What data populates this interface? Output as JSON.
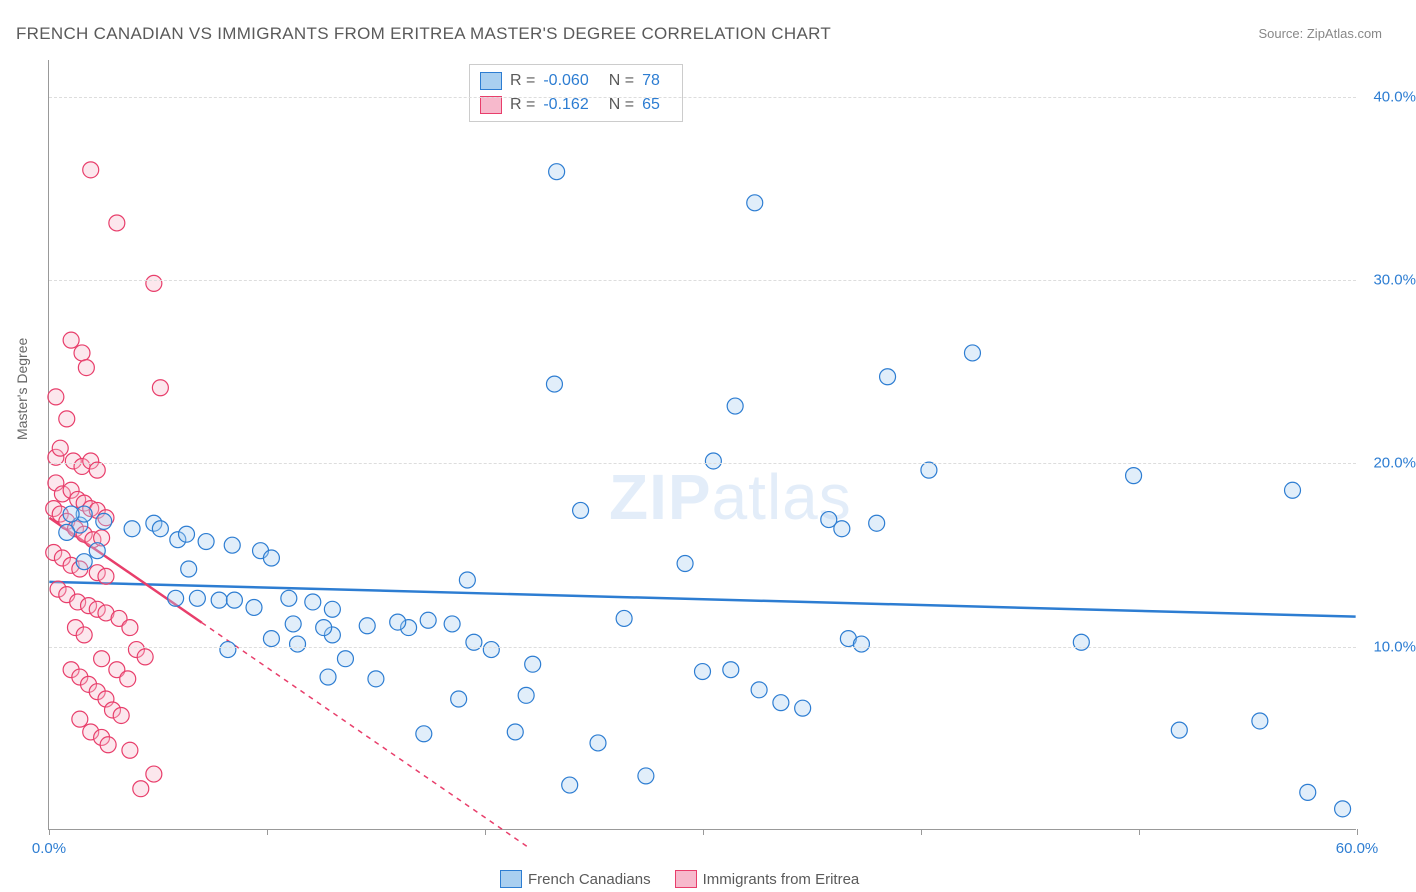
{
  "title": "FRENCH CANADIAN VS IMMIGRANTS FROM ERITREA MASTER'S DEGREE CORRELATION CHART",
  "source": "Source: ZipAtlas.com",
  "watermark": "ZIPatlas",
  "yaxis_label": "Master's Degree",
  "chart": {
    "type": "scatter",
    "background_color": "#ffffff",
    "grid_color": "#dddddd",
    "axis_color": "#999999",
    "marker_radius": 8,
    "marker_stroke_width": 1.2,
    "marker_fill_opacity": 0.35,
    "xlim": [
      0,
      60
    ],
    "ylim": [
      0,
      42
    ],
    "xticks": [
      0,
      10,
      20,
      30,
      40,
      50,
      60
    ],
    "xtick_labels": [
      "0.0%",
      "",
      "",
      "",
      "",
      "",
      "60.0%"
    ],
    "yticks": [
      10,
      20,
      30,
      40
    ],
    "ytick_labels": [
      "10.0%",
      "20.0%",
      "30.0%",
      "40.0%"
    ],
    "axis_font_size": 15,
    "axis_label_color": "#2d7dd2",
    "series": [
      {
        "name": "French Canadians",
        "stroke": "#2d7dd2",
        "fill": "#a9cff0",
        "r_value": "-0.060",
        "n_value": "78",
        "trend": {
          "x1": 0,
          "y1": 13.5,
          "x2": 60,
          "y2": 11.6,
          "solid_until_x": 60
        },
        "points": [
          [
            23.3,
            35.9
          ],
          [
            32.4,
            34.2
          ],
          [
            1.4,
            16.6
          ],
          [
            1.6,
            17.2
          ],
          [
            2.2,
            15.2
          ],
          [
            3.8,
            16.4
          ],
          [
            4.8,
            16.7
          ],
          [
            5.1,
            16.4
          ],
          [
            5.9,
            15.8
          ],
          [
            6.3,
            16.1
          ],
          [
            7.2,
            15.7
          ],
          [
            8.4,
            15.5
          ],
          [
            9.7,
            15.2
          ],
          [
            10.2,
            14.8
          ],
          [
            5.8,
            12.6
          ],
          [
            6.8,
            12.6
          ],
          [
            7.8,
            12.5
          ],
          [
            8.5,
            12.5
          ],
          [
            11.0,
            12.6
          ],
          [
            12.1,
            12.4
          ],
          [
            13.0,
            12.0
          ],
          [
            24.4,
            17.4
          ],
          [
            23.2,
            24.3
          ],
          [
            31.5,
            23.1
          ],
          [
            30.5,
            20.1
          ],
          [
            38.5,
            24.7
          ],
          [
            42.4,
            26.0
          ],
          [
            36.4,
            16.4
          ],
          [
            38.0,
            16.7
          ],
          [
            40.4,
            19.6
          ],
          [
            49.8,
            19.3
          ],
          [
            57.1,
            18.5
          ],
          [
            47.4,
            10.2
          ],
          [
            51.9,
            5.4
          ],
          [
            55.6,
            5.9
          ],
          [
            57.8,
            2.0
          ],
          [
            59.4,
            1.1
          ],
          [
            29.2,
            14.5
          ],
          [
            30.0,
            8.6
          ],
          [
            31.3,
            8.7
          ],
          [
            32.6,
            7.6
          ],
          [
            33.6,
            6.9
          ],
          [
            34.6,
            6.6
          ],
          [
            35.8,
            16.9
          ],
          [
            36.7,
            10.4
          ],
          [
            37.3,
            10.1
          ],
          [
            26.4,
            11.5
          ],
          [
            27.4,
            2.9
          ],
          [
            23.9,
            2.4
          ],
          [
            25.2,
            4.7
          ],
          [
            21.9,
            7.3
          ],
          [
            22.2,
            9.0
          ],
          [
            21.4,
            5.3
          ],
          [
            18.8,
            7.1
          ],
          [
            17.2,
            5.2
          ],
          [
            16.5,
            11.0
          ],
          [
            16.0,
            11.3
          ],
          [
            15.0,
            8.2
          ],
          [
            13.6,
            9.3
          ],
          [
            14.6,
            11.1
          ],
          [
            13.0,
            10.6
          ],
          [
            12.6,
            11.0
          ],
          [
            12.8,
            8.3
          ],
          [
            11.4,
            10.1
          ],
          [
            11.2,
            11.2
          ],
          [
            10.2,
            10.4
          ],
          [
            17.4,
            11.4
          ],
          [
            18.5,
            11.2
          ],
          [
            19.5,
            10.2
          ],
          [
            20.3,
            9.8
          ],
          [
            19.2,
            13.6
          ],
          [
            9.4,
            12.1
          ],
          [
            8.2,
            9.8
          ],
          [
            6.4,
            14.2
          ],
          [
            1.6,
            14.6
          ],
          [
            0.8,
            16.2
          ],
          [
            1.0,
            17.2
          ],
          [
            2.5,
            16.8
          ]
        ]
      },
      {
        "name": "Immigrants from Eritrea",
        "stroke": "#e83e6b",
        "fill": "#f7b9cc",
        "r_value": "-0.162",
        "n_value": "65",
        "trend": {
          "x1": 0,
          "y1": 17.0,
          "x2": 22,
          "y2": -1.0,
          "solid_until_x": 7
        },
        "points": [
          [
            1.9,
            36.0
          ],
          [
            3.1,
            33.1
          ],
          [
            4.8,
            29.8
          ],
          [
            5.1,
            24.1
          ],
          [
            1.0,
            26.7
          ],
          [
            1.5,
            26.0
          ],
          [
            1.7,
            25.2
          ],
          [
            0.3,
            23.6
          ],
          [
            0.8,
            22.4
          ],
          [
            0.3,
            20.3
          ],
          [
            0.5,
            20.8
          ],
          [
            1.1,
            20.1
          ],
          [
            1.5,
            19.8
          ],
          [
            1.9,
            20.1
          ],
          [
            2.2,
            19.6
          ],
          [
            0.3,
            18.9
          ],
          [
            0.6,
            18.3
          ],
          [
            1.0,
            18.5
          ],
          [
            1.3,
            18.0
          ],
          [
            1.6,
            17.8
          ],
          [
            1.9,
            17.5
          ],
          [
            2.2,
            17.4
          ],
          [
            2.6,
            17.0
          ],
          [
            0.2,
            17.5
          ],
          [
            0.5,
            17.2
          ],
          [
            0.8,
            16.8
          ],
          [
            1.2,
            16.4
          ],
          [
            1.6,
            16.1
          ],
          [
            2.0,
            15.8
          ],
          [
            2.4,
            15.9
          ],
          [
            0.2,
            15.1
          ],
          [
            0.6,
            14.8
          ],
          [
            1.0,
            14.4
          ],
          [
            1.4,
            14.2
          ],
          [
            2.2,
            14.0
          ],
          [
            2.6,
            13.8
          ],
          [
            0.4,
            13.1
          ],
          [
            0.8,
            12.8
          ],
          [
            1.3,
            12.4
          ],
          [
            1.8,
            12.2
          ],
          [
            2.2,
            12.0
          ],
          [
            2.6,
            11.8
          ],
          [
            3.2,
            11.5
          ],
          [
            3.7,
            11.0
          ],
          [
            4.0,
            9.8
          ],
          [
            4.4,
            9.4
          ],
          [
            1.2,
            11.0
          ],
          [
            1.6,
            10.6
          ],
          [
            2.4,
            9.3
          ],
          [
            3.1,
            8.7
          ],
          [
            3.6,
            8.2
          ],
          [
            1.0,
            8.7
          ],
          [
            1.4,
            8.3
          ],
          [
            1.8,
            7.9
          ],
          [
            2.2,
            7.5
          ],
          [
            2.6,
            7.1
          ],
          [
            2.9,
            6.5
          ],
          [
            3.3,
            6.2
          ],
          [
            1.4,
            6.0
          ],
          [
            1.9,
            5.3
          ],
          [
            2.4,
            5.0
          ],
          [
            2.7,
            4.6
          ],
          [
            3.7,
            4.3
          ],
          [
            4.8,
            3.0
          ],
          [
            4.2,
            2.2
          ]
        ]
      }
    ]
  },
  "legend": {
    "r_label": "R =",
    "n_label": "N =",
    "items": [
      "French Canadians",
      "Immigrants from Eritrea"
    ]
  }
}
